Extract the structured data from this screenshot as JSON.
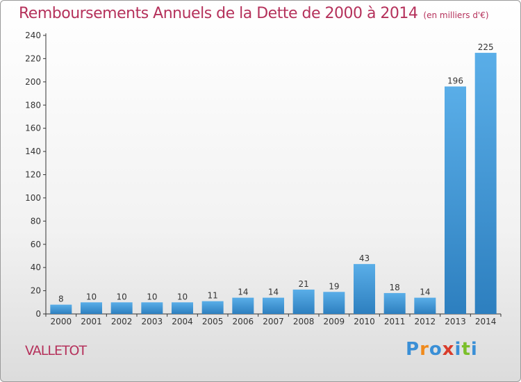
{
  "header": {
    "title": "Remboursements Annuels de la Dette de 2000 à 2014",
    "subtitle": "(en milliers d'€)"
  },
  "footer": {
    "commune": "VALLETOT",
    "logo_letters": [
      "P",
      "r",
      "o",
      "x",
      "i",
      "t",
      "i"
    ],
    "logo_colors": [
      "#3a8fd6",
      "#f08a1c",
      "#3a8fd6",
      "#d93c2b",
      "#3a8fd6",
      "#7bbf2a",
      "#3a8fd6"
    ]
  },
  "colors": {
    "bar_top": "#5aaee8",
    "bar_bottom": "#2d7fbf",
    "axis": "#333333",
    "grid": "#e6e6e6"
  },
  "chart_data": {
    "type": "bar",
    "categories": [
      "2000",
      "2001",
      "2002",
      "2003",
      "2004",
      "2005",
      "2006",
      "2007",
      "2008",
      "2009",
      "2010",
      "2011",
      "2012",
      "2013",
      "2014"
    ],
    "values": [
      8,
      10,
      10,
      10,
      10,
      11,
      14,
      14,
      21,
      19,
      43,
      18,
      14,
      196,
      225
    ],
    "data_labels": [
      "8",
      "10",
      "10",
      "10",
      "10",
      "11",
      "14",
      "14",
      "21",
      "19",
      "43",
      "18",
      "14",
      "196",
      "225"
    ],
    "ylim": [
      0,
      240
    ],
    "yticks": [
      "0",
      "20",
      "40",
      "60",
      "80",
      "100",
      "120",
      "140",
      "160",
      "180",
      "200",
      "220",
      "240"
    ],
    "xlabel": "",
    "ylabel": "",
    "grid": false,
    "legend": "none"
  }
}
